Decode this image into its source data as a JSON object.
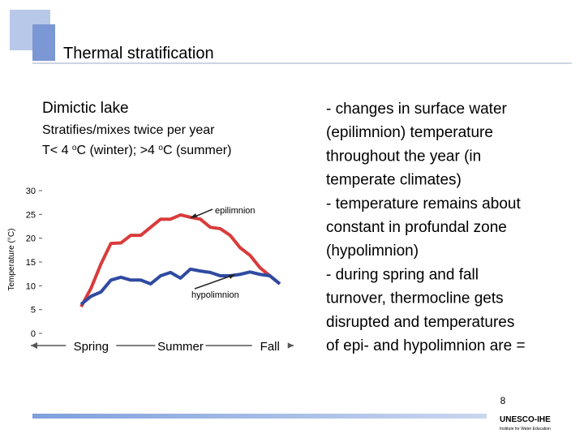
{
  "slide": {
    "title": "Thermal stratification",
    "heading": "Dimictic lake",
    "subheading": "Stratifies/mixes twice per year",
    "temp_line": [
      "T< 4 ",
      "o",
      "C (winter); >4 ",
      "o",
      "C (summer)"
    ],
    "body_lines": [
      "- changes in surface water",
      "(epilimnion) temperature",
      "throughout the year (in",
      "temperate climates)",
      "- temperature remains about",
      "constant in profundal zone",
      "(hypolimnion)",
      "- during spring and fall",
      "turnover, thermocline gets",
      "disrupted and temperatures",
      "of epi- and hypolimnion are ="
    ],
    "page_number": "8",
    "logo": "UNESCO-IHE",
    "logo_subtitle": "Institute for Water Education"
  },
  "chart_data": {
    "type": "line",
    "ylabel": "Temperature (°C)",
    "categories": [
      null,
      "Spring",
      null,
      null,
      null,
      null,
      null,
      null,
      null,
      null,
      "Summer",
      null,
      null,
      null,
      null,
      null,
      null,
      null,
      null,
      "Fall",
      null
    ],
    "ylim": [
      0,
      30
    ],
    "yticks": [
      0,
      5,
      10,
      15,
      20,
      25,
      30
    ],
    "series": [
      {
        "name": "epilimnion",
        "color": "#d93b3b",
        "values": [
          5.6,
          9.5,
          14.6,
          18.9,
          19,
          20.6,
          20.6,
          22.3,
          24,
          24,
          24.9,
          24.4,
          24,
          22.3,
          22,
          20.6,
          18,
          16.4,
          13.8,
          12.1,
          10.4
        ]
      },
      {
        "name": "hypolimnion",
        "color": "#2f4aa0",
        "values": [
          6.1,
          7.8,
          8.7,
          11.2,
          11.8,
          11.2,
          11.2,
          10.4,
          12.1,
          12.8,
          11.6,
          13.5,
          13.1,
          12.8,
          12.1,
          12.1,
          12.4,
          12.9,
          12.4,
          12.1,
          10.4
        ]
      }
    ]
  }
}
